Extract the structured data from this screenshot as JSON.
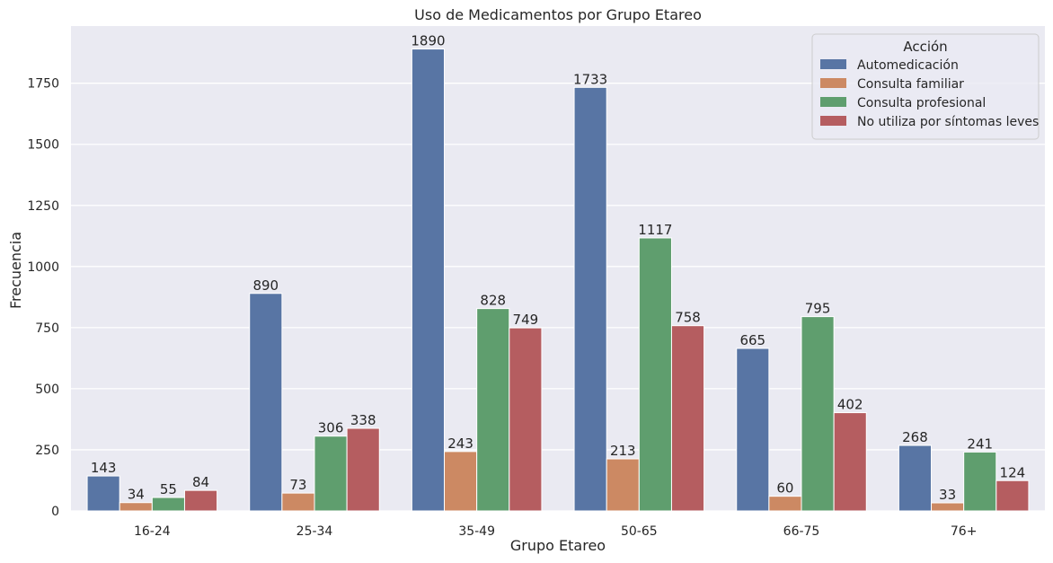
{
  "chart_data": {
    "type": "bar",
    "title": "Uso de Medicamentos por Grupo Etareo",
    "xlabel": "Grupo Etareo",
    "ylabel": "Frecuencia",
    "categories": [
      "16-24",
      "25-34",
      "35-49",
      "50-65",
      "66-75",
      "76+"
    ],
    "yticks": [
      0,
      250,
      500,
      750,
      1000,
      1250,
      1500,
      1750
    ],
    "ylim": [
      0,
      1984
    ],
    "grid": true,
    "legend": {
      "title": "Acción",
      "position": "top-right"
    },
    "series": [
      {
        "name": "Automedicación",
        "color": "#5875a4",
        "values": [
          143,
          890,
          1890,
          1733,
          665,
          268
        ]
      },
      {
        "name": "Consulta familiar",
        "color": "#cc8963",
        "values": [
          34,
          73,
          243,
          213,
          60,
          33
        ]
      },
      {
        "name": "Consulta profesional",
        "color": "#5f9e6e",
        "values": [
          55,
          306,
          828,
          1117,
          795,
          241
        ]
      },
      {
        "name": "No utiliza por síntomas leves",
        "color": "#b55d60",
        "values": [
          84,
          338,
          749,
          758,
          402,
          124
        ]
      }
    ]
  }
}
